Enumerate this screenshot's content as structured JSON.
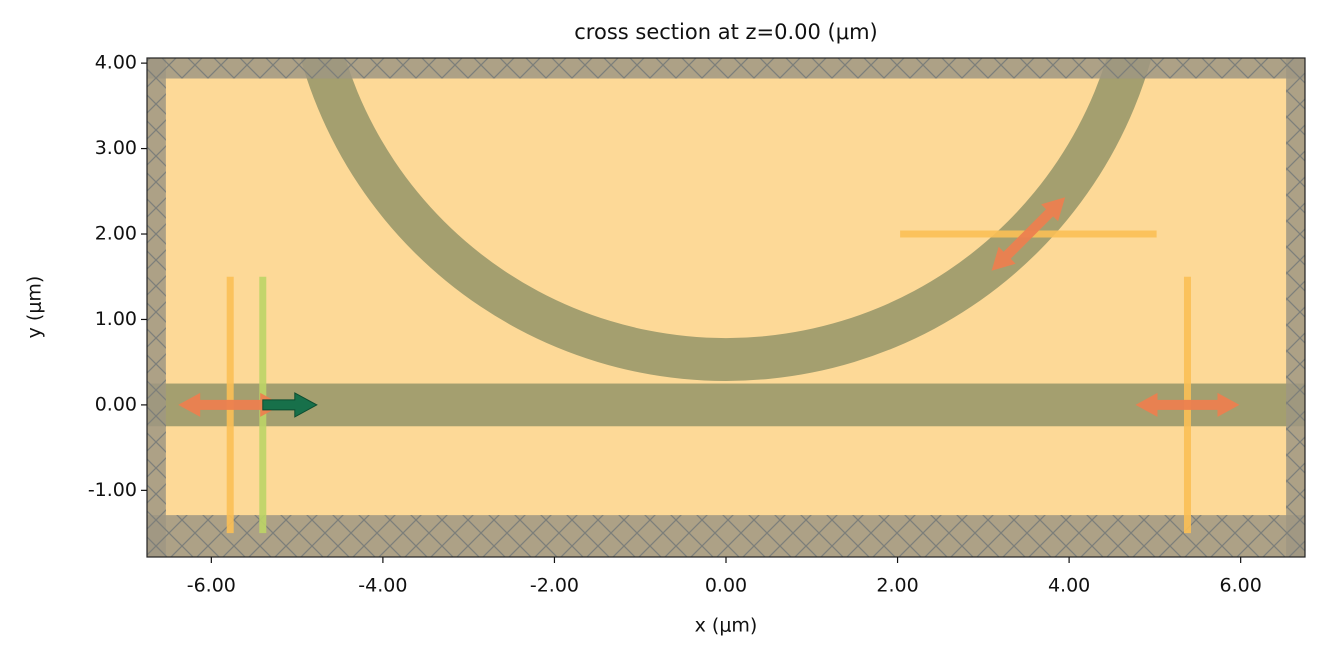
{
  "chart_data": {
    "type": "simulation-cross-section",
    "title": "cross section at z=0.00 (μm)",
    "x_label": "x (μm)",
    "y_label": "y (μm)",
    "xlim": [
      -6.75,
      6.75
    ],
    "ylim": [
      -1.78,
      4.06
    ],
    "xticks": [
      {
        "value": -6,
        "label": "-6.00"
      },
      {
        "value": -4,
        "label": "-4.00"
      },
      {
        "value": -2,
        "label": "-2.00"
      },
      {
        "value": 0,
        "label": "0.00"
      },
      {
        "value": 2,
        "label": "2.00"
      },
      {
        "value": 4,
        "label": "4.00"
      },
      {
        "value": 6,
        "label": "6.00"
      }
    ],
    "yticks": [
      {
        "value": -1,
        "label": "-1.00"
      },
      {
        "value": 0,
        "label": "0.00"
      },
      {
        "value": 1,
        "label": "1.00"
      },
      {
        "value": 2,
        "label": "2.00"
      },
      {
        "value": 3,
        "label": "3.00"
      },
      {
        "value": 4,
        "label": "4.00"
      }
    ],
    "background_color": "#fdd997",
    "structures": [
      {
        "shape": "box",
        "x": [
          -6.75,
          6.75
        ],
        "y": [
          -0.25,
          0.25
        ],
        "color": "#a49f6f"
      },
      {
        "shape": "ring",
        "center": [
          0,
          5.45
        ],
        "radii": [
          4.65,
          5.15
        ],
        "color": "#a49f6f"
      }
    ],
    "pml": {
      "color": "#9f9782",
      "regions": [
        {
          "x": [
            -6.75,
            -6.53
          ],
          "y": [
            -1.78,
            4.06
          ]
        },
        {
          "x": [
            6.53,
            6.75
          ],
          "y": [
            -1.78,
            4.06
          ]
        },
        {
          "x": [
            -6.75,
            6.75
          ],
          "y": [
            3.82,
            4.06
          ]
        },
        {
          "x": [
            -6.75,
            6.75
          ],
          "y": [
            -1.78,
            -1.29
          ]
        }
      ]
    },
    "monitors": [
      {
        "x": [
          -5.78,
          -5.78
        ],
        "y": [
          -1.5,
          1.5
        ],
        "color": "#fbbf55",
        "arrow_angle": 0
      },
      {
        "x": [
          5.38,
          5.38
        ],
        "y": [
          -1.5,
          1.5
        ],
        "color": "#fbbf55",
        "arrow_angle": 0
      },
      {
        "x": [
          2.03,
          5.02
        ],
        "y": [
          2.0,
          2.0
        ],
        "color": "#fbbf55",
        "arrow_angle": 45
      }
    ],
    "source": {
      "x": [
        -5.4,
        -5.4
      ],
      "y": [
        -1.5,
        1.5
      ],
      "color": "#bcd466",
      "arrow_color": "#17704a",
      "arrow_angle": 0
    }
  }
}
